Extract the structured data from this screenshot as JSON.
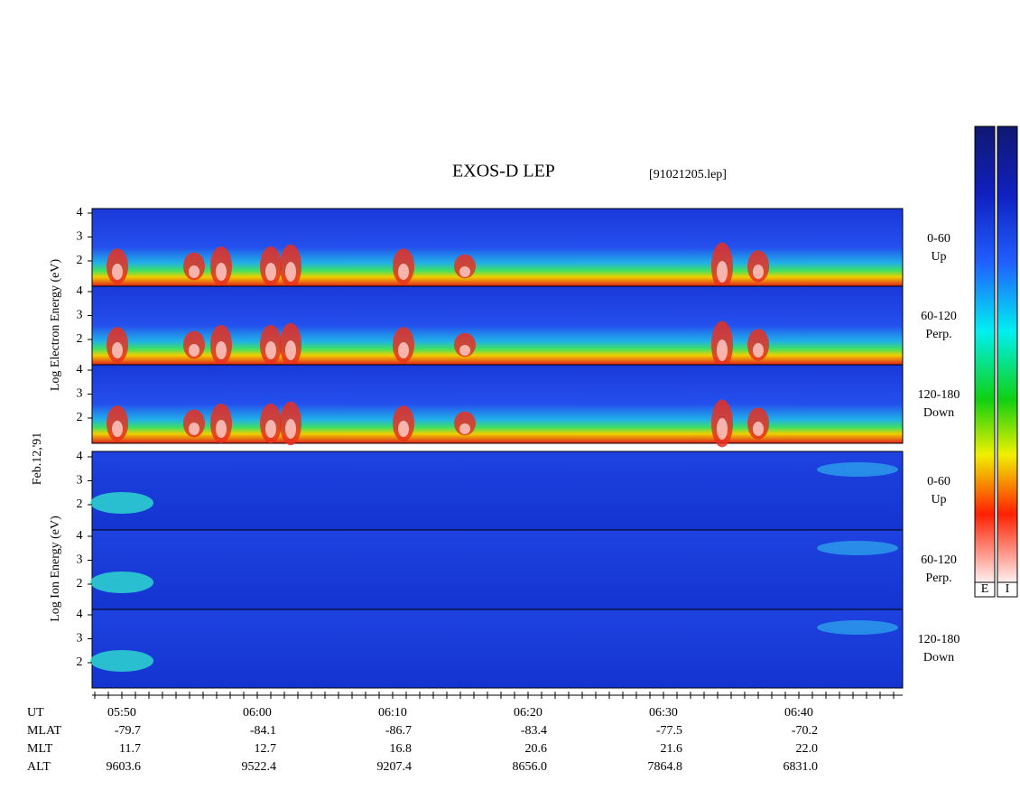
{
  "title": "EXOS-D LEP",
  "file": "[91021205.lep]",
  "date_label": "Feb.12,'91",
  "groups": [
    {
      "axis_label": "Log   Electron   Energy (eV)",
      "panels": [
        {
          "angle": "0-60",
          "dir": "Up"
        },
        {
          "angle": "60-120",
          "dir": "Perp."
        },
        {
          "angle": "120-180",
          "dir": "Down"
        }
      ]
    },
    {
      "axis_label": "Log   Ion   Energy (eV)",
      "panels": [
        {
          "angle": "0-60",
          "dir": "Up"
        },
        {
          "angle": "60-120",
          "dir": "Perp."
        },
        {
          "angle": "120-180",
          "dir": "Down"
        }
      ]
    }
  ],
  "ytick_labels": [
    "2",
    "3",
    "4"
  ],
  "axis_rows": [
    {
      "name": "UT",
      "values": [
        "05:50",
        "06:00",
        "06:10",
        "06:20",
        "06:30",
        "06:40"
      ]
    },
    {
      "name": "MLAT",
      "values": [
        "-79.7",
        "-84.1",
        "-86.7",
        "-83.4",
        "-77.5",
        "-70.2"
      ]
    },
    {
      "name": "MLT",
      "values": [
        "11.7",
        "12.7",
        "16.8",
        "20.6",
        "21.6",
        "22.0"
      ]
    },
    {
      "name": "ALT",
      "values": [
        "9603.6",
        "9522.4",
        "9207.4",
        "8656.0",
        "7864.8",
        "6831.0"
      ]
    }
  ],
  "colorbars": [
    "E",
    "I"
  ]
}
